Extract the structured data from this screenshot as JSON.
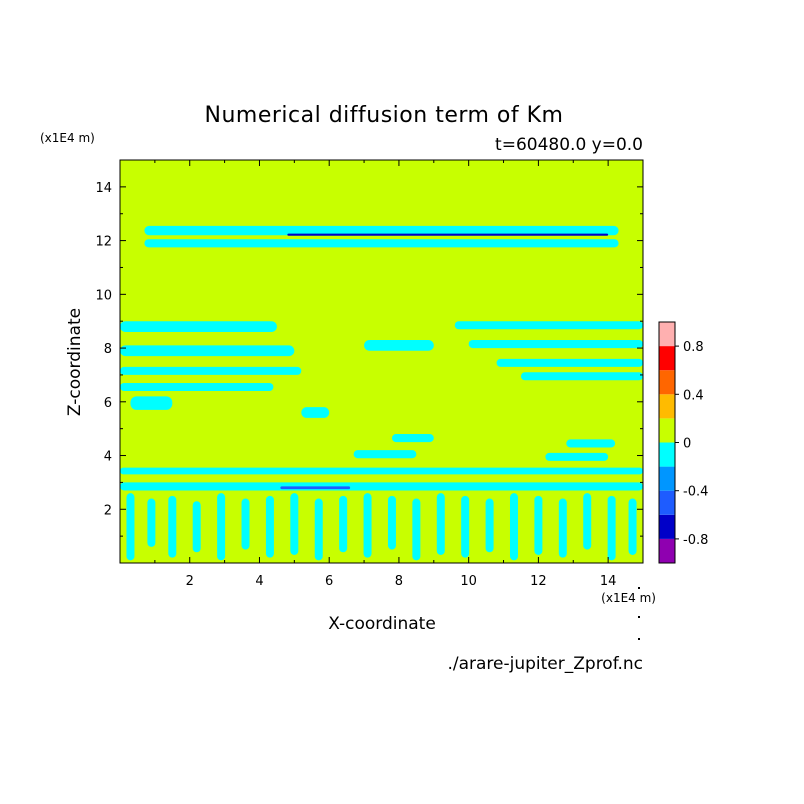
{
  "chart_data": {
    "type": "heatmap",
    "title": "Numerical diffusion term of Km",
    "subtitle": "t=60480.0 y=0.0",
    "xlabel": "X-coordinate",
    "ylabel": "Z-coordinate",
    "x_unit": "(x1E4 m)",
    "y_unit": "(x1E4 m)",
    "xlim": [
      0.0,
      15.0
    ],
    "ylim": [
      0.0,
      15.0
    ],
    "x_ticks": [
      2,
      4,
      6,
      8,
      10,
      12,
      14
    ],
    "y_ticks": [
      2,
      4,
      6,
      8,
      10,
      12,
      14
    ],
    "filename": "./arare-jupiter_Zprof.nc",
    "background_level": 0.0,
    "colorbar": {
      "levels": [
        -1.0,
        -0.8,
        -0.6,
        -0.4,
        -0.2,
        0.0,
        0.2,
        0.4,
        0.6,
        0.8,
        1.0
      ],
      "colors": [
        "#8f00b0",
        "#0000c8",
        "#1e5cff",
        "#0096ff",
        "#00ffff",
        "#c8ff00",
        "#ffbb00",
        "#ff6600",
        "#ff0000",
        "#ffb0b0"
      ],
      "tick_labels": [
        "0.8",
        "0.4",
        "0",
        "-0.4",
        "-0.8"
      ],
      "tick_values": [
        0.8,
        0.4,
        0.0,
        -0.4,
        -0.8
      ]
    },
    "bands": [
      {
        "x": [
          0.7,
          14.3
        ],
        "z": [
          12.2,
          12.55
        ],
        "level": -0.1
      },
      {
        "x": [
          0.7,
          14.3
        ],
        "z": [
          11.75,
          12.05
        ],
        "level": -0.1
      },
      {
        "x": [
          4.8,
          14.0
        ],
        "z": [
          12.18,
          12.26
        ],
        "level": -0.7
      },
      {
        "x": [
          0.0,
          4.5
        ],
        "z": [
          8.6,
          9.0
        ],
        "level": -0.1
      },
      {
        "x": [
          0.0,
          5.0
        ],
        "z": [
          7.7,
          8.1
        ],
        "level": -0.1
      },
      {
        "x": [
          0.0,
          5.2
        ],
        "z": [
          7.0,
          7.3
        ],
        "level": -0.1
      },
      {
        "x": [
          0.0,
          4.4
        ],
        "z": [
          6.4,
          6.7
        ],
        "level": -0.1
      },
      {
        "x": [
          0.3,
          1.5
        ],
        "z": [
          5.7,
          6.2
        ],
        "level": -0.1
      },
      {
        "x": [
          5.2,
          6.0
        ],
        "z": [
          5.4,
          5.8
        ],
        "level": -0.1
      },
      {
        "x": [
          7.0,
          9.0
        ],
        "z": [
          7.9,
          8.3
        ],
        "level": -0.1
      },
      {
        "x": [
          9.6,
          15.0
        ],
        "z": [
          8.7,
          9.0
        ],
        "level": -0.1
      },
      {
        "x": [
          10.0,
          15.0
        ],
        "z": [
          8.0,
          8.3
        ],
        "level": -0.1
      },
      {
        "x": [
          10.8,
          15.0
        ],
        "z": [
          7.3,
          7.6
        ],
        "level": -0.1
      },
      {
        "x": [
          11.5,
          15.0
        ],
        "z": [
          6.8,
          7.1
        ],
        "level": -0.1
      },
      {
        "x": [
          7.8,
          9.0
        ],
        "z": [
          4.5,
          4.8
        ],
        "level": -0.1
      },
      {
        "x": [
          6.7,
          8.5
        ],
        "z": [
          3.9,
          4.2
        ],
        "level": -0.1
      },
      {
        "x": [
          12.8,
          14.2
        ],
        "z": [
          4.3,
          4.6
        ],
        "level": -0.1
      },
      {
        "x": [
          12.2,
          14.0
        ],
        "z": [
          3.8,
          4.1
        ],
        "level": -0.1
      },
      {
        "x": [
          0.0,
          15.0
        ],
        "z": [
          3.3,
          3.55
        ],
        "level": -0.1
      },
      {
        "x": [
          0.0,
          15.0
        ],
        "z": [
          2.7,
          3.0
        ],
        "level": -0.1
      },
      {
        "x": [
          4.6,
          6.6
        ],
        "z": [
          2.75,
          2.85
        ],
        "level": -0.5
      }
    ],
    "streaks": [
      {
        "x": 0.3,
        "z": [
          0.1,
          2.6
        ],
        "level": -0.1
      },
      {
        "x": 0.9,
        "z": [
          0.6,
          2.4
        ],
        "level": -0.1
      },
      {
        "x": 1.5,
        "z": [
          0.2,
          2.5
        ],
        "level": -0.1
      },
      {
        "x": 2.2,
        "z": [
          0.4,
          2.3
        ],
        "level": -0.1
      },
      {
        "x": 2.9,
        "z": [
          0.1,
          2.6
        ],
        "level": -0.1
      },
      {
        "x": 3.6,
        "z": [
          0.5,
          2.4
        ],
        "level": -0.1
      },
      {
        "x": 4.3,
        "z": [
          0.2,
          2.5
        ],
        "level": -0.1
      },
      {
        "x": 5.0,
        "z": [
          0.3,
          2.6
        ],
        "level": -0.1
      },
      {
        "x": 5.7,
        "z": [
          0.1,
          2.4
        ],
        "level": -0.1
      },
      {
        "x": 6.4,
        "z": [
          0.4,
          2.5
        ],
        "level": -0.1
      },
      {
        "x": 7.1,
        "z": [
          0.2,
          2.6
        ],
        "level": -0.1
      },
      {
        "x": 7.8,
        "z": [
          0.5,
          2.5
        ],
        "level": -0.1
      },
      {
        "x": 8.5,
        "z": [
          0.1,
          2.4
        ],
        "level": -0.1
      },
      {
        "x": 9.2,
        "z": [
          0.3,
          2.6
        ],
        "level": -0.1
      },
      {
        "x": 9.9,
        "z": [
          0.2,
          2.5
        ],
        "level": -0.1
      },
      {
        "x": 10.6,
        "z": [
          0.4,
          2.4
        ],
        "level": -0.1
      },
      {
        "x": 11.3,
        "z": [
          0.1,
          2.6
        ],
        "level": -0.1
      },
      {
        "x": 12.0,
        "z": [
          0.3,
          2.5
        ],
        "level": -0.1
      },
      {
        "x": 12.7,
        "z": [
          0.2,
          2.4
        ],
        "level": -0.1
      },
      {
        "x": 13.4,
        "z": [
          0.5,
          2.6
        ],
        "level": -0.1
      },
      {
        "x": 14.1,
        "z": [
          0.1,
          2.5
        ],
        "level": -0.1
      },
      {
        "x": 14.7,
        "z": [
          0.3,
          2.4
        ],
        "level": -0.1
      }
    ]
  }
}
